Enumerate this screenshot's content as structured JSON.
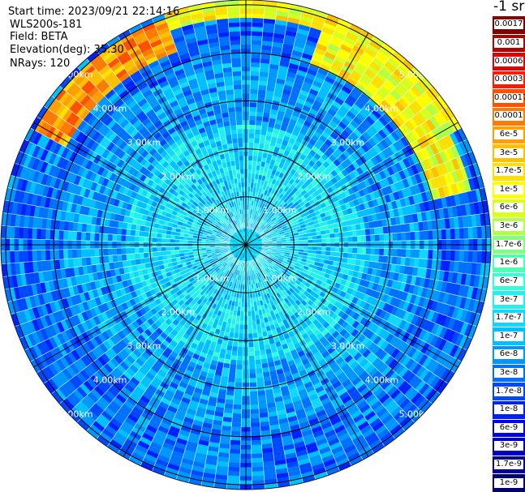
{
  "info": {
    "start_time": "Start time: 2023/09/21 22:14:16",
    "instrument": "WLS200s-181",
    "field": "Field: BETA",
    "elevation": "Elevation(deg): 35.30",
    "nrays": "NRays: 120"
  },
  "colorbar": {
    "unit_label": "-1 sr",
    "ticks": [
      "0.0017",
      "0.001",
      "0.0006",
      "0.0003",
      "0.00017",
      "0.0001",
      "6e-5",
      "3e-5",
      "1.7e-5",
      "1e-5",
      "6e-6",
      "3e-6",
      "1.7e-6",
      "1e-6",
      "6e-7",
      "3e-7",
      "1.7e-7",
      "1e-7",
      "6e-8",
      "3e-8",
      "1.7e-8",
      "1e-8",
      "6e-9",
      "3e-9",
      "1.7e-9",
      "1e-9"
    ],
    "colors": [
      "#800000",
      "#b00000",
      "#e00000",
      "#ff1a00",
      "#ff5000",
      "#ff7a00",
      "#ffa000",
      "#ffc000",
      "#ffe000",
      "#ffff00",
      "#d8ff20",
      "#b0ff48",
      "#80ff80",
      "#50ffb0",
      "#30ffd8",
      "#20f0f0",
      "#10d8ff",
      "#00c0ff",
      "#0098ff",
      "#0070ff",
      "#0048ff",
      "#0020ff",
      "#0000e8",
      "#0000c0",
      "#000098",
      "#000070"
    ]
  },
  "chart_data": {
    "type": "heatmap",
    "projection": "polar PPI",
    "field": "BETA",
    "n_rays": 120,
    "elevation_deg": 35.3,
    "range_rings_km": [
      1.0,
      2.0,
      3.0,
      4.0,
      5.0
    ],
    "ring_labels": [
      "1.00km",
      "2.00km",
      "3.00km",
      "4.00km",
      "5.00km"
    ],
    "max_range_km": 5.1,
    "value_scale": "log",
    "value_range": [
      1e-09,
      0.0017
    ],
    "regions": [
      {
        "range_km": [
          0.0,
          1.0
        ],
        "typical_value": 1.7e-07
      },
      {
        "range_km": [
          1.0,
          2.5
        ],
        "typical_value": 1.7e-07
      },
      {
        "range_km": [
          2.5,
          3.8
        ],
        "typical_value": 6e-08
      },
      {
        "range_km": [
          3.8,
          5.1
        ],
        "typical_value": 3e-08
      },
      {
        "range_km": [
          4.3,
          5.0
        ],
        "azimuth_deg": [
          300,
          340
        ],
        "typical_value": 6e-05
      },
      {
        "range_km": [
          4.7,
          5.1
        ],
        "azimuth_deg": [
          340,
          60
        ],
        "typical_value": 1e-05
      },
      {
        "range_km": [
          4.0,
          4.8
        ],
        "azimuth_deg": [
          20,
          75
        ],
        "typical_value": 1e-05
      }
    ]
  }
}
